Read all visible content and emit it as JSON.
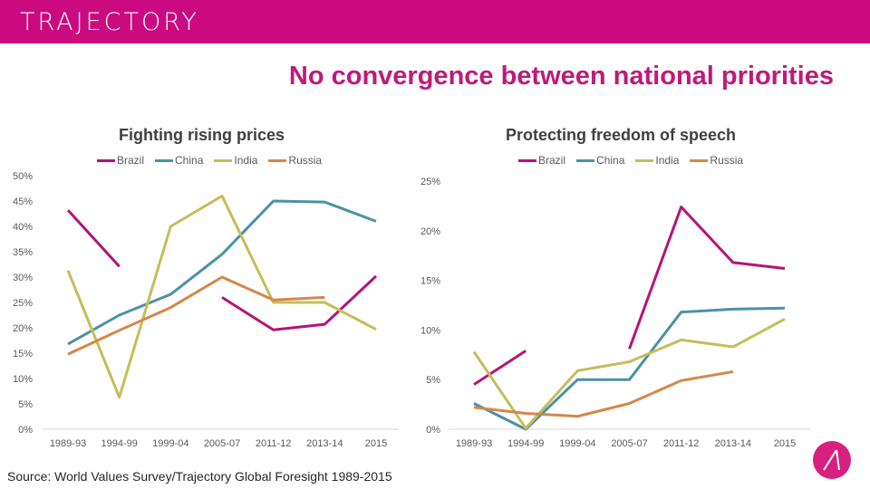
{
  "brand": "TRAJECTORY",
  "main_title": "No convergence between national priorities",
  "source": "Source: World Values Survey/Trajectory Global Foresight 1989-2015",
  "colors": {
    "Brazil": "#b5137a",
    "China": "#4a92a6",
    "India": "#c5bd5a",
    "Russia": "#d4874a",
    "banner": "#cc0a80"
  },
  "chart_data": [
    {
      "type": "line",
      "title": "Fighting rising prices",
      "categories": [
        "1989-93",
        "1994-99",
        "1999-04",
        "2005-07",
        "2011-12",
        "2013-14",
        "2015"
      ],
      "ylim": [
        0,
        50
      ],
      "yticks": [
        "0%",
        "5%",
        "10%",
        "15%",
        "20%",
        "25%",
        "30%",
        "35%",
        "40%",
        "45%",
        "50%"
      ],
      "ytick_values": [
        0,
        5,
        10,
        15,
        20,
        25,
        30,
        35,
        40,
        45,
        50
      ],
      "legend": [
        "Brazil",
        "China",
        "India",
        "Russia"
      ],
      "legend_position": "top",
      "series": [
        {
          "name": "Brazil",
          "values": [
            43.2,
            32.1,
            null,
            26.0,
            19.6,
            20.7,
            30.2
          ]
        },
        {
          "name": "China",
          "values": [
            16.8,
            22.5,
            26.6,
            34.5,
            45.0,
            44.8,
            41.0
          ]
        },
        {
          "name": "India",
          "values": [
            31.3,
            6.3,
            40.0,
            46.0,
            25.0,
            25.0,
            19.7
          ]
        },
        {
          "name": "Russia",
          "values": [
            14.8,
            19.5,
            24.0,
            30.0,
            25.5,
            26.0,
            null
          ]
        }
      ]
    },
    {
      "type": "line",
      "title": "Protecting freedom of speech",
      "categories": [
        "1989-93",
        "1994-99",
        "1999-04",
        "2005-07",
        "2011-12",
        "2013-14",
        "2015"
      ],
      "ylim": [
        0,
        25
      ],
      "yticks": [
        "0%",
        "5%",
        "10%",
        "15%",
        "20%",
        "25%"
      ],
      "ytick_values": [
        0,
        5,
        10,
        15,
        20,
        25
      ],
      "legend": [
        "Brazil",
        "China",
        "India",
        "Russia"
      ],
      "legend_position": "top",
      "series": [
        {
          "name": "Brazil",
          "values": [
            4.5,
            7.9,
            null,
            8.1,
            22.4,
            16.8,
            16.2
          ]
        },
        {
          "name": "China",
          "values": [
            2.6,
            0.0,
            5.0,
            5.0,
            11.8,
            12.1,
            12.2
          ]
        },
        {
          "name": "India",
          "values": [
            7.8,
            0.1,
            5.9,
            6.8,
            9.0,
            8.3,
            11.1
          ]
        },
        {
          "name": "Russia",
          "values": [
            2.2,
            1.6,
            1.3,
            2.6,
            4.9,
            5.8,
            null
          ]
        }
      ]
    }
  ]
}
